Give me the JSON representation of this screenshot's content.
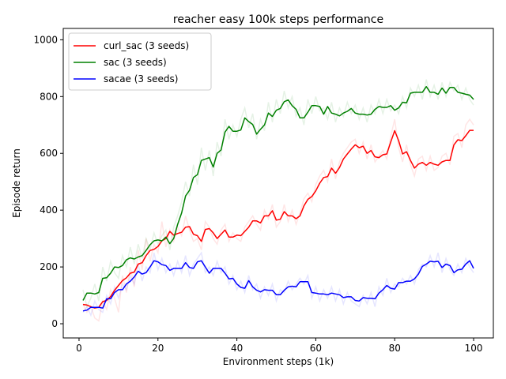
{
  "chart_data": {
    "type": "line",
    "title": "reacher easy 100k steps performance",
    "xlabel": "Environment steps (1k)",
    "ylabel": "Episode return",
    "xlim": [
      -4,
      105
    ],
    "ylim": [
      -50,
      1040
    ],
    "xticks": [
      0,
      20,
      40,
      60,
      80,
      100
    ],
    "yticks": [
      0,
      200,
      400,
      600,
      800,
      1000
    ],
    "grid": false,
    "legend_position": "upper-left",
    "x": [
      1,
      2,
      3,
      4,
      5,
      6,
      7,
      8,
      9,
      10,
      11,
      12,
      13,
      14,
      15,
      16,
      17,
      18,
      19,
      20,
      21,
      22,
      23,
      24,
      25,
      26,
      27,
      28,
      29,
      30,
      31,
      32,
      33,
      34,
      35,
      36,
      37,
      38,
      39,
      40,
      41,
      42,
      43,
      44,
      45,
      46,
      47,
      48,
      49,
      50,
      51,
      52,
      53,
      54,
      55,
      56,
      57,
      58,
      59,
      60,
      61,
      62,
      63,
      64,
      65,
      66,
      67,
      68,
      69,
      70,
      71,
      72,
      73,
      74,
      75,
      76,
      77,
      78,
      79,
      80,
      81,
      82,
      83,
      84,
      85,
      86,
      87,
      88,
      89,
      90,
      91,
      92,
      93,
      94,
      95,
      96,
      97,
      98,
      99,
      100
    ],
    "series": [
      {
        "name": "curl_sac (3 seeds)",
        "color": "#ff0000",
        "values": [
          68,
          66,
          60,
          55,
          58,
          78,
          82,
          96,
          118,
          135,
          152,
          162,
          178,
          182,
          210,
          215,
          240,
          258,
          262,
          272,
          292,
          300,
          325,
          312,
          318,
          322,
          340,
          342,
          315,
          310,
          290,
          332,
          335,
          320,
          300,
          315,
          330,
          305,
          305,
          312,
          310,
          325,
          340,
          362,
          362,
          355,
          380,
          380,
          398,
          365,
          368,
          395,
          380,
          380,
          370,
          380,
          415,
          438,
          448,
          468,
          495,
          515,
          518,
          548,
          530,
          550,
          580,
          598,
          615,
          630,
          620,
          625,
          600,
          610,
          588,
          585,
          595,
          598,
          640,
          680,
          645,
          598,
          606,
          575,
          548,
          562,
          568,
          558,
          568,
          562,
          558,
          570,
          575,
          575,
          630,
          648,
          645,
          662,
          681,
          681
        ],
        "raw_values": [
          70,
          40,
          60,
          20,
          10,
          80,
          50,
          120,
          90,
          40,
          170,
          110,
          200,
          130,
          260,
          190,
          300,
          220,
          280,
          250,
          360,
          270,
          330,
          290,
          340,
          310,
          380,
          330,
          290,
          300,
          260,
          360,
          340,
          300,
          280,
          330,
          350,
          290,
          320,
          300,
          290,
          340,
          360,
          380,
          350,
          330,
          400,
          370,
          420,
          340,
          360,
          420,
          360,
          400,
          350,
          390,
          440,
          460,
          430,
          490,
          520,
          540,
          500,
          580,
          510,
          570,
          600,
          620,
          640,
          650,
          600,
          640,
          580,
          630,
          570,
          590,
          610,
          580,
          660,
          720,
          620,
          570,
          630,
          560,
          520,
          580,
          590,
          540,
          590,
          540,
          550,
          590,
          600,
          560,
          660,
          670,
          620,
          700,
          720,
          700
        ]
      },
      {
        "name": "sac (3 seeds)",
        "color": "#008000",
        "values": [
          82,
          108,
          108,
          105,
          110,
          160,
          162,
          178,
          200,
          198,
          205,
          225,
          232,
          228,
          235,
          240,
          258,
          278,
          292,
          295,
          292,
          305,
          282,
          300,
          350,
          390,
          450,
          470,
          515,
          525,
          575,
          580,
          585,
          552,
          600,
          612,
          675,
          695,
          678,
          678,
          682,
          725,
          712,
          702,
          668,
          685,
          700,
          742,
          730,
          752,
          758,
          782,
          788,
          768,
          755,
          725,
          725,
          745,
          768,
          768,
          765,
          738,
          765,
          742,
          738,
          732,
          742,
          748,
          758,
          742,
          738,
          738,
          735,
          738,
          755,
          765,
          762,
          762,
          768,
          752,
          760,
          780,
          778,
          812,
          815,
          815,
          815,
          835,
          815,
          815,
          808,
          830,
          812,
          832,
          832,
          815,
          812,
          808,
          805,
          790
        ],
        "raw_values": [
          120,
          60,
          90,
          140,
          80,
          200,
          150,
          220,
          180,
          160,
          240,
          200,
          270,
          210,
          280,
          230,
          300,
          260,
          320,
          280,
          310,
          330,
          260,
          340,
          380,
          430,
          500,
          450,
          560,
          490,
          620,
          540,
          610,
          520,
          640,
          590,
          720,
          650,
          700,
          660,
          720,
          760,
          690,
          740,
          650,
          720,
          680,
          780,
          710,
          790,
          740,
          820,
          760,
          800,
          730,
          760,
          700,
          790,
          740,
          800,
          750,
          760,
          720,
          780,
          710,
          760,
          730,
          780,
          740,
          770,
          720,
          760,
          710,
          770,
          740,
          790,
          740,
          790,
          750,
          770,
          740,
          800,
          760,
          830,
          800,
          840,
          790,
          860,
          800,
          840,
          790,
          850,
          800,
          850,
          820,
          840,
          790,
          830,
          790,
          770
        ]
      },
      {
        "name": "sacae (3 seeds)",
        "color": "#0000ff",
        "values": [
          45,
          48,
          58,
          58,
          58,
          55,
          88,
          88,
          110,
          120,
          120,
          140,
          150,
          165,
          185,
          175,
          180,
          200,
          222,
          218,
          208,
          205,
          188,
          195,
          195,
          195,
          215,
          198,
          195,
          218,
          222,
          200,
          178,
          195,
          195,
          195,
          178,
          158,
          160,
          140,
          128,
          125,
          152,
          130,
          118,
          112,
          120,
          118,
          118,
          102,
          102,
          118,
          130,
          132,
          130,
          148,
          148,
          148,
          110,
          108,
          105,
          105,
          102,
          108,
          105,
          102,
          92,
          95,
          95,
          82,
          80,
          92,
          90,
          90,
          88,
          108,
          120,
          135,
          125,
          122,
          145,
          145,
          150,
          150,
          158,
          175,
          202,
          210,
          220,
          218,
          220,
          198,
          210,
          205,
          180,
          190,
          192,
          210,
          222,
          195
        ],
        "raw_values": [
          40,
          60,
          30,
          80,
          50,
          40,
          100,
          70,
          130,
          90,
          140,
          120,
          170,
          140,
          210,
          150,
          200,
          180,
          250,
          190,
          230,
          180,
          210,
          170,
          220,
          180,
          240,
          170,
          210,
          230,
          250,
          180,
          200,
          170,
          220,
          180,
          200,
          140,
          170,
          120,
          150,
          110,
          170,
          120,
          140,
          90,
          130,
          100,
          140,
          80,
          120,
          110,
          150,
          120,
          140,
          160,
          140,
          170,
          90,
          130,
          80,
          120,
          90,
          130,
          80,
          120,
          70,
          110,
          80,
          70,
          60,
          100,
          70,
          110,
          60,
          130,
          100,
          160,
          110,
          140,
          130,
          160,
          140,
          170,
          140,
          190,
          210,
          200,
          240,
          200,
          250,
          180,
          230,
          190,
          170,
          210,
          180,
          230,
          200,
          180
        ]
      }
    ]
  }
}
